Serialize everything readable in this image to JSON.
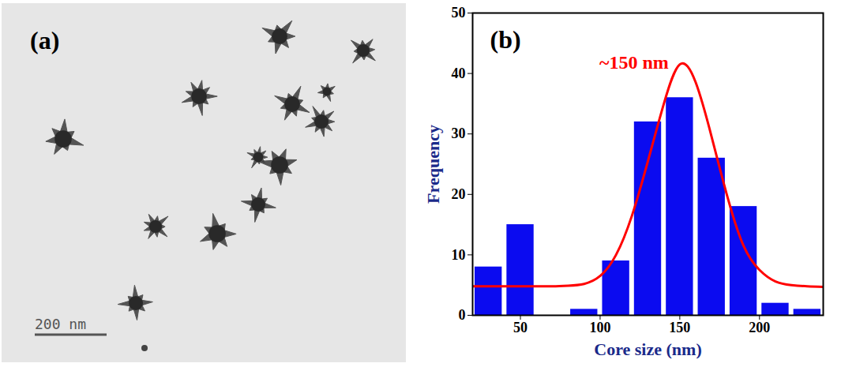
{
  "panel_a": {
    "label": "(a)",
    "scale_bar_label": "200 nm"
  },
  "chart_data": {
    "type": "bar",
    "panel_label": "(b)",
    "xlabel": "Core size (nm)",
    "ylabel": "Frequency",
    "bins": [
      20,
      40,
      60,
      80,
      100,
      120,
      140,
      160,
      180,
      200,
      220,
      240
    ],
    "values": [
      8,
      15,
      0,
      1,
      9,
      32,
      36,
      26,
      18,
      2,
      1
    ],
    "color": "#0b0bf0",
    "xlim": [
      20,
      240
    ],
    "xticks": [
      50,
      100,
      150,
      200
    ],
    "ylim": [
      0,
      50
    ],
    "yticks": [
      0,
      10,
      20,
      30,
      40,
      50
    ],
    "grid": false,
    "fit": {
      "type": "line",
      "color": "#ff0000",
      "x": [
        20,
        30,
        40,
        50,
        60,
        70,
        80,
        90,
        100,
        110,
        120,
        130,
        140,
        150,
        160,
        170,
        180,
        190,
        200,
        210,
        220,
        230,
        240
      ],
      "values": [
        4.8,
        4.8,
        4.8,
        4.8,
        4.8,
        4.8,
        4.9,
        5.2,
        6.5,
        10,
        16.5,
        25.5,
        35,
        41.5,
        38.5,
        29.5,
        19.5,
        11.5,
        7.5,
        5.6,
        5,
        4.8,
        4.7
      ]
    },
    "annotations": [
      {
        "text": "~150 nm",
        "color": "#ff0000"
      }
    ]
  }
}
